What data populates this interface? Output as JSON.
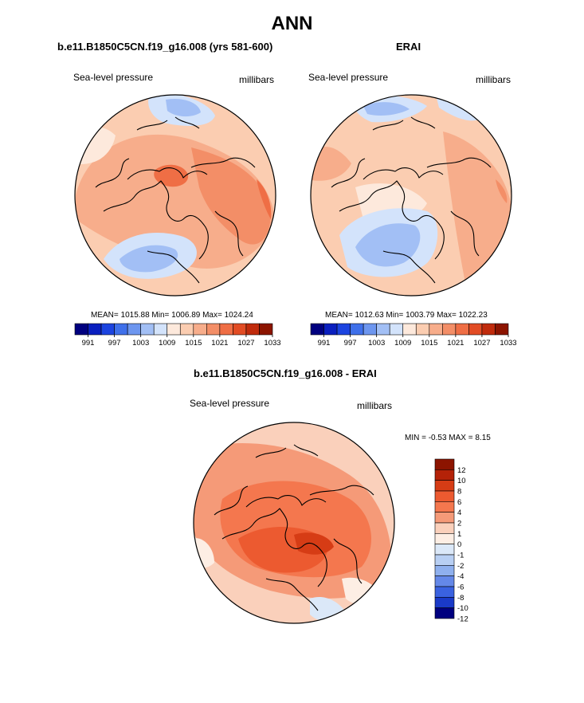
{
  "main_title": "ANN",
  "panels": [
    {
      "title": "b.e11.B1850C5CN.f19_g16.008 (yrs 581-600)",
      "variable_label": "Sea-level pressure",
      "units_label": "millibars",
      "stats_text": "MEAN= 1015.88  Min= 1006.89  Max= 1024.24",
      "colorbar_ticks": [
        "991",
        "997",
        "1003",
        "1009",
        "1015",
        "1021",
        "1027",
        "1033"
      ]
    },
    {
      "title": "ERAI",
      "variable_label": "Sea-level pressure",
      "units_label": "millibars",
      "stats_text": "MEAN= 1012.63  Min= 1003.79  Max= 1022.23",
      "colorbar_ticks": [
        "991",
        "997",
        "1003",
        "1009",
        "1015",
        "1021",
        "1027",
        "1033"
      ]
    },
    {
      "title": "b.e11.B1850C5CN.f19_g16.008 - ERAI",
      "variable_label": "Sea-level pressure",
      "units_label": "millibars",
      "stats_text": "MIN =  -0.53 MAX =   8.15",
      "colorbar_ticks": [
        "12",
        "10",
        "8",
        "6",
        "4",
        "2",
        "1",
        "0",
        "-1",
        "-2",
        "-4",
        "-6",
        "-8",
        "-10",
        "-12"
      ]
    }
  ],
  "colors": {
    "abs_scale": [
      "#00007f",
      "#0a1fbf",
      "#1c44e0",
      "#3f70ea",
      "#6d96ef",
      "#a2bff5",
      "#d3e3fb",
      "#fde9dc",
      "#fbcdb1",
      "#f7ad8b",
      "#f38e67",
      "#ef6e45",
      "#e24c24",
      "#c02b0c",
      "#8c1400"
    ],
    "diff_scale": [
      "#8c1400",
      "#b42208",
      "#d63c15",
      "#ec5a30",
      "#f4774e",
      "#f59a78",
      "#fad0bb",
      "#fdeee4",
      "#dbe8f8",
      "#b8cff3",
      "#8fb0ee",
      "#6488e8",
      "#3a62e0",
      "#1a3ac8",
      "#00007f"
    ]
  },
  "chart_data": [
    {
      "type": "heatmap",
      "title": "b.e11.B1850C5CN.f19_g16.008 (yrs 581-600)",
      "projection": "north polar stereographic",
      "variable": "Sea-level pressure",
      "units": "millibars",
      "mean": 1015.88,
      "min": 1006.89,
      "max": 1024.24,
      "contour_levels": [
        991,
        994,
        997,
        1000,
        1003,
        1006,
        1009,
        1012,
        1015,
        1018,
        1021,
        1024,
        1027,
        1030,
        1033
      ],
      "colorbar_ticks": [
        991,
        997,
        1003,
        1009,
        1015,
        1021,
        1027,
        1033
      ]
    },
    {
      "type": "heatmap",
      "title": "ERAI",
      "projection": "north polar stereographic",
      "variable": "Sea-level pressure",
      "units": "millibars",
      "mean": 1012.63,
      "min": 1003.79,
      "max": 1022.23,
      "contour_levels": [
        991,
        994,
        997,
        1000,
        1003,
        1006,
        1009,
        1012,
        1015,
        1018,
        1021,
        1024,
        1027,
        1030,
        1033
      ],
      "colorbar_ticks": [
        991,
        997,
        1003,
        1009,
        1015,
        1021,
        1027,
        1033
      ]
    },
    {
      "type": "heatmap",
      "title": "b.e11.B1850C5CN.f19_g16.008 - ERAI",
      "projection": "north polar stereographic",
      "variable": "Sea-level pressure",
      "units": "millibars",
      "min": -0.53,
      "max": 8.15,
      "contour_levels": [
        -12,
        -10,
        -8,
        -6,
        -4,
        -2,
        -1,
        0,
        1,
        2,
        4,
        6,
        8,
        10,
        12
      ],
      "colorbar_ticks": [
        12,
        10,
        8,
        6,
        4,
        2,
        1,
        0,
        -1,
        -2,
        -4,
        -6,
        -8,
        -10,
        -12
      ]
    }
  ]
}
